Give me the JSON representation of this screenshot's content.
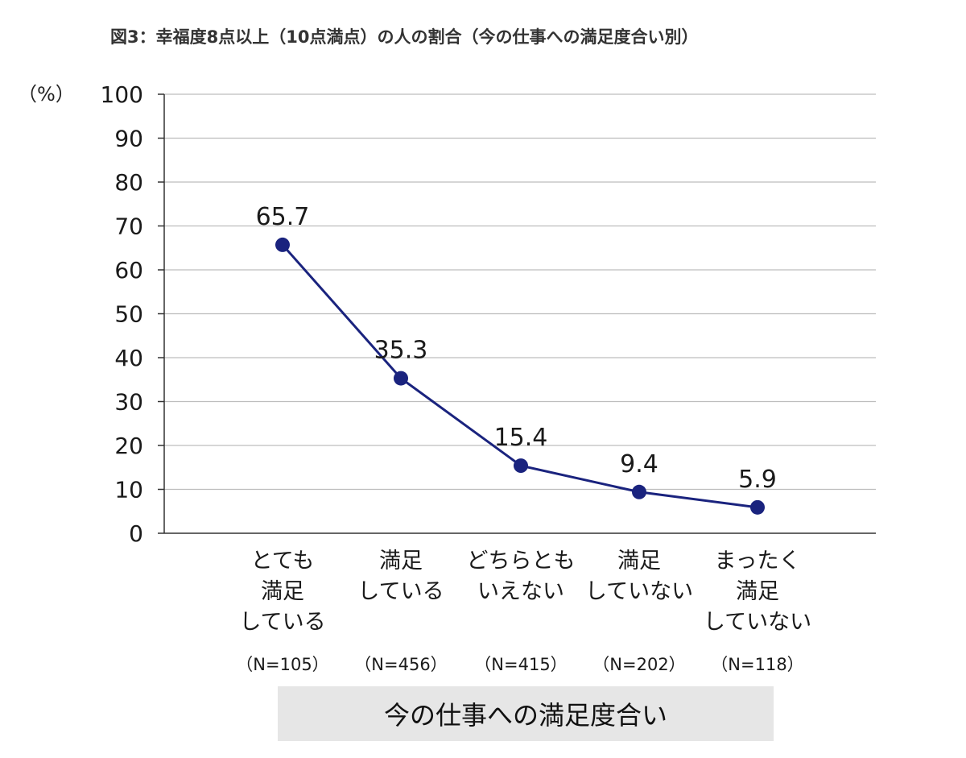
{
  "chart_data": {
    "type": "line",
    "title": "図3：幸福度8点以上（10点満点）の人の割合（今の仕事への満足度合い別）",
    "ylabel": "（%）",
    "xlabel": "今の仕事への満足度合い",
    "ylim": [
      0,
      100
    ],
    "yticks": [
      0,
      10,
      20,
      30,
      40,
      50,
      60,
      70,
      80,
      90,
      100
    ],
    "grid": true,
    "colors": {
      "line": "#1a237e",
      "grid": "#bdbdbd",
      "axis": "#333333"
    },
    "categories": [
      {
        "lines": [
          "とても",
          "満足",
          "している"
        ],
        "n": "（N=105）"
      },
      {
        "lines": [
          "満足",
          "している"
        ],
        "n": "（N=456）"
      },
      {
        "lines": [
          "どちらとも",
          "いえない"
        ],
        "n": "（N=415）"
      },
      {
        "lines": [
          "満足",
          "していない"
        ],
        "n": "（N=202）"
      },
      {
        "lines": [
          "まったく",
          "満足",
          "していない"
        ],
        "n": "（N=118）"
      }
    ],
    "values": [
      65.7,
      35.3,
      15.4,
      9.4,
      5.9
    ],
    "value_labels": [
      "65.7",
      "35.3",
      "15.4",
      "9.4",
      "5.9"
    ]
  }
}
